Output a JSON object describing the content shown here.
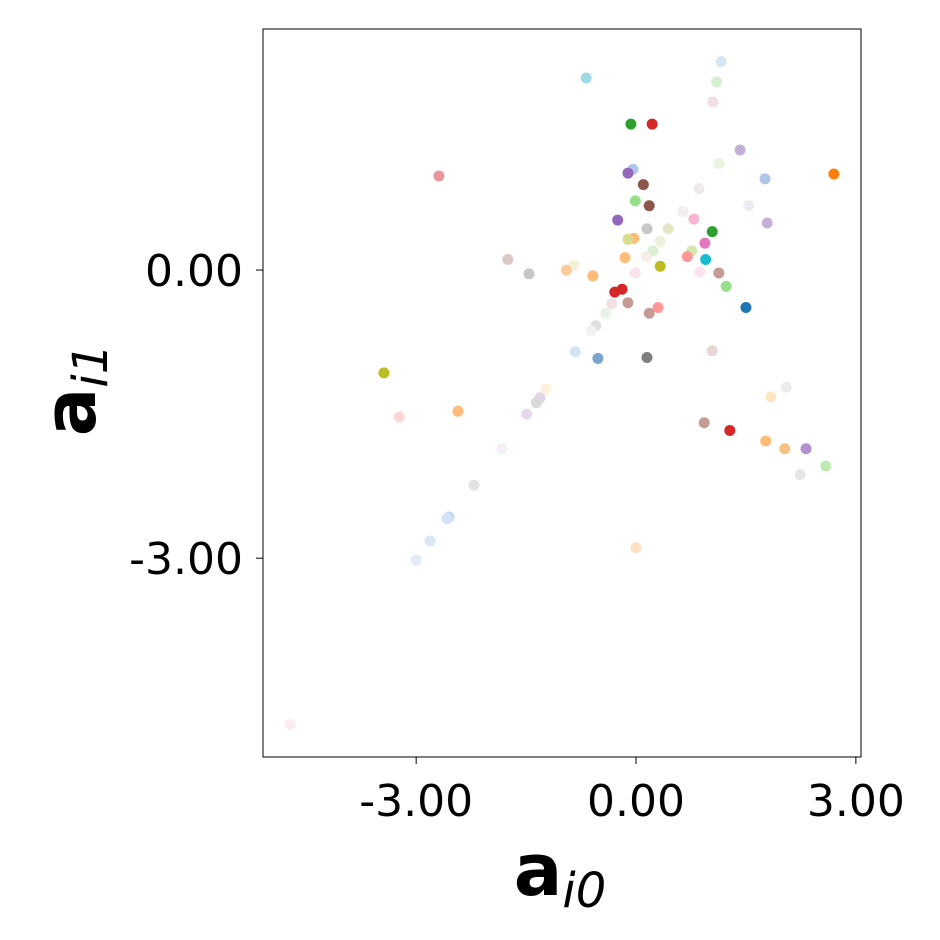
{
  "chart_data": {
    "type": "scatter",
    "xlabel": {
      "base": "a",
      "sub": "i0"
    },
    "ylabel": {
      "base": "a",
      "sub": "i1"
    },
    "xlim": [
      -5.09,
      3.07
    ],
    "ylim": [
      -5.07,
      2.51
    ],
    "xticks": [
      {
        "value": -3,
        "label": "-3.00"
      },
      {
        "value": 0,
        "label": "0.00"
      },
      {
        "value": 3,
        "label": "3.00"
      }
    ],
    "yticks": [
      {
        "value": -3,
        "label": "-3.00"
      },
      {
        "value": 0,
        "label": "0.00"
      }
    ],
    "x": [
      1.16,
      -0.68,
      1.1,
      1.05,
      -0.07,
      0.22,
      1.42,
      1.13,
      -2.69,
      -0.04,
      -0.11,
      1.76,
      2.7,
      0.1,
      0.86,
      -0.01,
      0.18,
      1.54,
      0.64,
      -0.25,
      0.79,
      1.79,
      0.15,
      0.44,
      1.04,
      -0.03,
      -0.11,
      0.33,
      0.94,
      0.23,
      0.76,
      -1.75,
      -0.15,
      0.14,
      0.7,
      0.95,
      0.33,
      -0.85,
      -0.95,
      -1.46,
      -0.59,
      -0.01,
      0.87,
      1.13,
      1.23,
      -0.29,
      -0.19,
      -0.33,
      -0.11,
      0.3,
      0.18,
      1.5,
      -0.41,
      -0.55,
      -0.61,
      -0.83,
      -0.52,
      0.15,
      1.04,
      -3.44,
      -1.23,
      -1.31,
      -1.36,
      -1.49,
      -2.43,
      -3.23,
      -1.83,
      -2.21,
      -2.55,
      -2.58,
      -2.81,
      -3.0,
      -4.72,
      0.0,
      0.93,
      1.28,
      1.77,
      2.03,
      2.32,
      2.59,
      2.24,
      1.84,
      2.05
    ],
    "y": [
      2.17,
      2.0,
      1.96,
      1.75,
      1.52,
      1.52,
      1.25,
      1.11,
      0.98,
      1.05,
      1.01,
      0.95,
      1.0,
      0.89,
      0.85,
      0.72,
      0.67,
      0.67,
      0.61,
      0.52,
      0.53,
      0.49,
      0.43,
      0.43,
      0.4,
      0.33,
      0.32,
      0.3,
      0.28,
      0.2,
      0.2,
      0.11,
      0.13,
      0.14,
      0.14,
      0.11,
      0.04,
      0.05,
      0.0,
      -0.04,
      -0.06,
      -0.03,
      -0.02,
      -0.03,
      -0.17,
      -0.23,
      -0.2,
      -0.35,
      -0.34,
      -0.39,
      -0.45,
      -0.39,
      -0.45,
      -0.58,
      -0.63,
      -0.85,
      -0.92,
      -0.91,
      -0.84,
      -1.07,
      -1.24,
      -1.33,
      -1.38,
      -1.5,
      -1.47,
      -1.53,
      -1.86,
      -2.24,
      -2.57,
      -2.59,
      -2.82,
      -3.02,
      -4.73,
      -2.89,
      -1.59,
      -1.67,
      -1.78,
      -1.86,
      -1.86,
      -2.04,
      -2.13,
      -1.32,
      -1.22
    ],
    "colors": [
      "#d6e6f5",
      "#9edae5",
      "#d4f0cf",
      "#f0dfe3",
      "#2ca02c",
      "#d62728",
      "#c5b0d5",
      "#eaf5e0",
      "#e8969c",
      "#aec7e8",
      "#9467bd",
      "#aec7e8",
      "#ff7f0e",
      "#8c564b",
      "#eeeaea",
      "#98df8a",
      "#8c564b",
      "#ececf3",
      "#f2ecef",
      "#9467bd",
      "#f7b6d2",
      "#c5b0d5",
      "#c7c7c7",
      "#e6e6c4",
      "#2ca02c",
      "#ffbb78",
      "#dbdb8d",
      "#eef2dc",
      "#e377c2",
      "#dcefd6",
      "#d4e8b0",
      "#dcc8c4",
      "#ffbb78",
      "#f3efe3",
      "#ff9896",
      "#17becf",
      "#bcbd22",
      "#f5f0d8",
      "#ffcc99",
      "#c7c7c7",
      "#ffbb78",
      "#f9e4ee",
      "#fbe3f0",
      "#c49c94",
      "#98df8a",
      "#d62728",
      "#d62728",
      "#efe2e0",
      "#c49c94",
      "#ff9896",
      "#c49c94",
      "#1f77b4",
      "#e8f2e6",
      "#dedede",
      "#f2f2f2",
      "#d4e3f3",
      "#7aa6cc",
      "#7f7f7f",
      "#e6d6d4",
      "#bcbd22",
      "#fbf1dd",
      "#e0d4ea",
      "#d9d9d9",
      "#e6d9ea",
      "#ffbb78",
      "#fdd5d5",
      "#f5f0f5",
      "#e3e3e3",
      "#c7dcf0",
      "#d3e3f3",
      "#dbe7f5",
      "#e1ecf7",
      "#fcebf0",
      "#ffe0c4",
      "#c49c94",
      "#d62728",
      "#ffbb78",
      "#f5c080",
      "#b48fd0",
      "#bfe8b5",
      "#e6e6e6",
      "#fde6c0",
      "#ececec"
    ]
  }
}
